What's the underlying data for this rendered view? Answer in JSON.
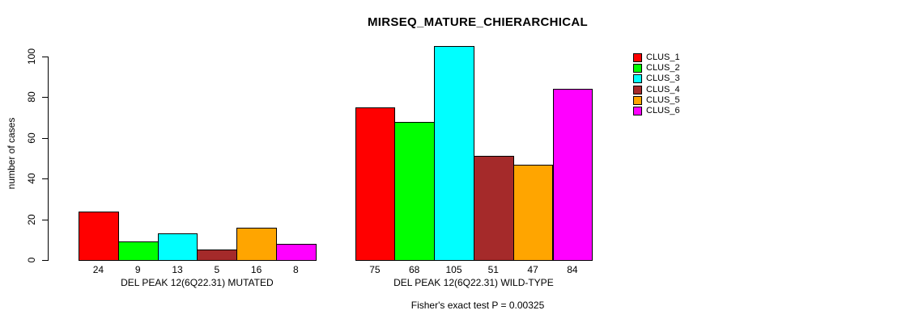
{
  "chart_data": {
    "type": "bar",
    "title": "MIRSEQ_MATURE_CHIERARCHICAL",
    "ylabel": "number of cases",
    "footnote": "Fisher's exact test P = 0.00325",
    "ylim": [
      0,
      105
    ],
    "yticks": [
      0,
      20,
      40,
      60,
      80,
      100
    ],
    "grid": false,
    "legend_position": "top-right",
    "legend": [
      {
        "label": "CLUS_1",
        "color": "#FF0000"
      },
      {
        "label": "CLUS_2",
        "color": "#00FF00"
      },
      {
        "label": "CLUS_3",
        "color": "#00FFFF"
      },
      {
        "label": "CLUS_4",
        "color": "#A52A2A"
      },
      {
        "label": "CLUS_5",
        "color": "#FFA500"
      },
      {
        "label": "CLUS_6",
        "color": "#FF00FF"
      }
    ],
    "groups": [
      {
        "label": "DEL PEAK 12(6Q22.31) MUTATED",
        "values": [
          24,
          9,
          13,
          5,
          16,
          8
        ]
      },
      {
        "label": "DEL PEAK 12(6Q22.31) WILD-TYPE",
        "values": [
          75,
          68,
          105,
          51,
          47,
          84
        ]
      }
    ],
    "bar_value_labels_shown": true
  }
}
